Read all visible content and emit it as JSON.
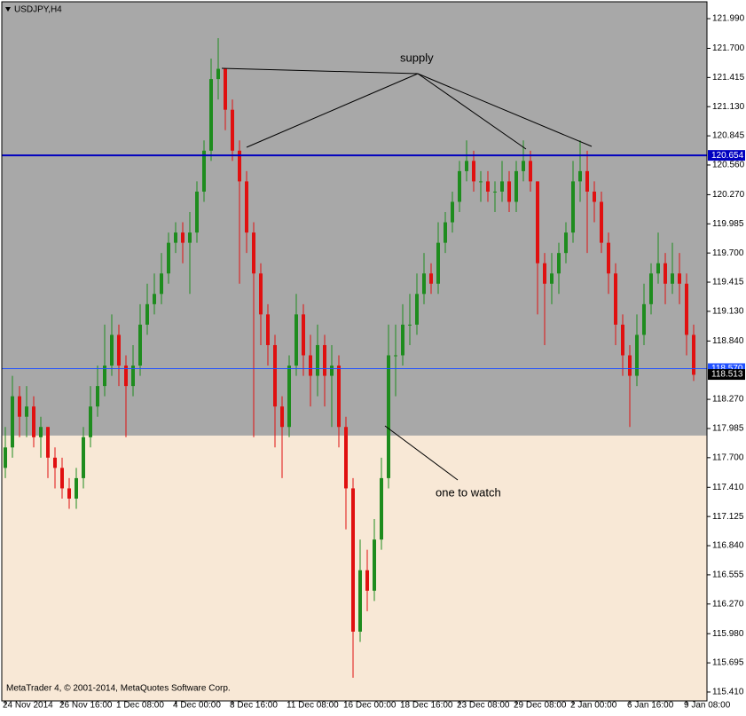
{
  "chart_data": {
    "type": "candlestick",
    "title": "USDJPY,H4",
    "footer": "MetaTrader 4, © 2001-2014, MetaQuotes Software Corp.",
    "categories": [
      "24 Nov 2014",
      null,
      null,
      null,
      null,
      null,
      null,
      null,
      "26 Nov 16:00",
      null,
      null,
      null,
      null,
      null,
      null,
      null,
      "1 Dec 08:00",
      null,
      null,
      null,
      null,
      null,
      null,
      null,
      "4 Dec 00:00",
      null,
      null,
      null,
      null,
      null,
      null,
      null,
      "8 Dec 16:00",
      null,
      null,
      null,
      null,
      null,
      null,
      null,
      "11 Dec 08:00",
      null,
      null,
      null,
      null,
      null,
      null,
      null,
      "16 Dec 00:00",
      null,
      null,
      null,
      null,
      null,
      null,
      null,
      "18 Dec 16:00",
      null,
      null,
      null,
      null,
      null,
      null,
      null,
      "23 Dec 08:00",
      null,
      null,
      null,
      null,
      null,
      null,
      null,
      "29 Dec 08:00",
      null,
      null,
      null,
      null,
      null,
      null,
      null,
      "2 Jan 00:00",
      null,
      null,
      null,
      null,
      null,
      null,
      null,
      "6 Jan 16:00",
      null,
      null,
      null,
      null,
      null,
      null,
      null,
      "9 Jan 08:00",
      null
    ],
    "open": [
      117.6,
      117.8,
      118.3,
      118.1,
      118.2,
      117.9,
      118.0,
      117.7,
      117.6,
      117.4,
      117.3,
      117.5,
      117.9,
      118.2,
      118.4,
      118.6,
      118.9,
      118.6,
      118.4,
      118.6,
      119.0,
      119.2,
      119.3,
      119.5,
      119.8,
      119.9,
      119.8,
      119.9,
      120.3,
      120.7,
      121.4,
      121.5,
      121.1,
      120.7,
      120.4,
      119.9,
      119.5,
      119.1,
      118.8,
      118.2,
      118.0,
      118.6,
      119.1,
      118.7,
      118.5,
      118.8,
      118.5,
      118.6,
      118.0,
      117.4,
      116.0,
      116.6,
      116.4,
      116.9,
      117.5,
      118.7,
      118.7,
      119.0,
      119.0,
      119.3,
      119.5,
      119.4,
      119.8,
      120.0,
      120.2,
      120.5,
      120.6,
      120.4,
      120.4,
      120.3,
      120.3,
      120.4,
      120.2,
      120.5,
      120.6,
      120.4,
      119.6,
      119.4,
      119.5,
      119.7,
      119.9,
      120.4,
      120.5,
      120.3,
      120.2,
      119.8,
      119.5,
      119.0,
      118.7,
      118.5,
      118.9,
      119.2,
      119.5,
      119.6,
      119.4,
      119.5,
      119.4,
      118.9
    ],
    "high": [
      118.0,
      118.5,
      118.4,
      118.4,
      118.3,
      118.1,
      118.0,
      117.8,
      117.7,
      117.5,
      117.6,
      118.0,
      118.4,
      118.6,
      119.0,
      119.1,
      119.0,
      118.7,
      118.8,
      119.2,
      119.4,
      119.5,
      119.7,
      119.9,
      120.0,
      120.0,
      120.1,
      120.4,
      120.8,
      121.6,
      121.8,
      121.5,
      121.2,
      120.8,
      120.5,
      120.0,
      119.6,
      119.2,
      118.9,
      118.3,
      118.7,
      119.3,
      119.2,
      118.9,
      119.0,
      118.9,
      118.8,
      118.7,
      118.1,
      117.5,
      116.9,
      116.8,
      117.1,
      117.7,
      119.0,
      119.0,
      119.2,
      119.3,
      119.5,
      119.7,
      119.6,
      120.0,
      120.1,
      120.3,
      120.6,
      120.8,
      120.7,
      120.5,
      120.5,
      120.4,
      120.6,
      120.5,
      120.6,
      120.8,
      120.7,
      120.4,
      119.7,
      119.7,
      119.8,
      120.0,
      120.6,
      120.8,
      120.7,
      120.4,
      120.3,
      119.9,
      119.6,
      119.1,
      118.8,
      119.1,
      119.4,
      119.6,
      119.9,
      119.7,
      119.8,
      119.7,
      119.5,
      119.0
    ],
    "low": [
      117.5,
      117.7,
      117.9,
      117.9,
      117.8,
      117.7,
      117.5,
      117.4,
      117.3,
      117.2,
      117.2,
      117.4,
      117.8,
      118.1,
      118.3,
      118.5,
      118.4,
      117.9,
      118.3,
      118.5,
      118.9,
      119.1,
      119.2,
      119.4,
      119.7,
      119.6,
      119.3,
      119.8,
      120.2,
      120.6,
      121.2,
      120.9,
      120.6,
      119.4,
      119.7,
      117.9,
      118.8,
      118.6,
      117.8,
      117.5,
      117.9,
      118.5,
      118.5,
      118.2,
      118.3,
      118.2,
      118.0,
      117.8,
      117.0,
      115.55,
      115.9,
      116.2,
      116.3,
      116.8,
      117.4,
      118.3,
      118.6,
      118.8,
      118.9,
      119.2,
      119.3,
      119.3,
      119.7,
      119.9,
      120.1,
      120.4,
      120.3,
      120.2,
      120.2,
      120.1,
      120.2,
      120.1,
      120.1,
      120.4,
      120.3,
      119.1,
      118.8,
      119.2,
      119.3,
      119.6,
      119.8,
      120.2,
      119.7,
      120.0,
      119.7,
      119.3,
      118.8,
      118.5,
      118.0,
      118.4,
      118.8,
      119.1,
      119.4,
      119.2,
      119.3,
      119.2,
      118.7,
      118.45
    ],
    "close": [
      117.8,
      118.3,
      118.1,
      118.2,
      117.9,
      118.0,
      117.7,
      117.6,
      117.4,
      117.3,
      117.5,
      117.9,
      118.2,
      118.4,
      118.6,
      118.9,
      118.6,
      118.4,
      118.6,
      119.0,
      119.2,
      119.3,
      119.5,
      119.8,
      119.9,
      119.8,
      119.9,
      120.3,
      120.7,
      121.4,
      121.5,
      121.1,
      120.7,
      120.4,
      119.9,
      119.5,
      119.1,
      118.8,
      118.2,
      118.0,
      118.6,
      119.1,
      118.7,
      118.5,
      118.8,
      118.5,
      118.6,
      118.0,
      117.4,
      116.0,
      116.6,
      116.4,
      116.9,
      117.5,
      118.7,
      118.7,
      119.0,
      119.0,
      119.3,
      119.5,
      119.4,
      119.8,
      120.0,
      120.2,
      120.5,
      120.6,
      120.4,
      120.4,
      120.3,
      120.3,
      120.4,
      120.2,
      120.5,
      120.6,
      120.4,
      119.6,
      119.4,
      119.5,
      119.7,
      119.9,
      120.4,
      120.5,
      120.3,
      120.2,
      119.8,
      119.5,
      119.0,
      118.7,
      118.5,
      118.9,
      119.2,
      119.5,
      119.6,
      119.4,
      119.5,
      119.4,
      118.9,
      118.51
    ],
    "up_color": "#1e8c1e",
    "down_color": "#e01010",
    "ylim": [
      115.323,
      122.155
    ],
    "yticks": [
      {
        "value": 121.99,
        "label": "121.990"
      },
      {
        "value": 121.7,
        "label": "121.700"
      },
      {
        "value": 121.415,
        "label": "121.415"
      },
      {
        "value": 121.13,
        "label": "121.130"
      },
      {
        "value": 120.845,
        "label": "120.845"
      },
      {
        "value": 120.56,
        "label": "120.560"
      },
      {
        "value": 120.27,
        "label": "120.270"
      },
      {
        "value": 119.985,
        "label": "119.985"
      },
      {
        "value": 119.7,
        "label": "119.700"
      },
      {
        "value": 119.415,
        "label": "119.415"
      },
      {
        "value": 119.13,
        "label": "119.130"
      },
      {
        "value": 118.84,
        "label": "118.840"
      },
      {
        "value": 118.27,
        "label": "118.270"
      },
      {
        "value": 117.985,
        "label": "117.985"
      },
      {
        "value": 117.7,
        "label": "117.700"
      },
      {
        "value": 117.41,
        "label": "117.410"
      },
      {
        "value": 117.125,
        "label": "117.125"
      },
      {
        "value": 116.84,
        "label": "116.840"
      },
      {
        "value": 116.555,
        "label": "116.555"
      },
      {
        "value": 116.27,
        "label": "116.270"
      },
      {
        "value": 115.98,
        "label": "115.980"
      },
      {
        "value": 115.695,
        "label": "115.695"
      },
      {
        "value": 115.41,
        "label": "115.410"
      }
    ],
    "supply_zone_bottom": 117.916,
    "levels": [
      {
        "value": 118.57,
        "label": "118.570",
        "color": "#2050ff",
        "width": 1
      },
      {
        "value": 120.654,
        "label": "120.654",
        "color": "#0000c0",
        "width": 2
      }
    ],
    "bid": {
      "value": 118.513,
      "label": "118.513"
    },
    "annotations": [
      "supply",
      "one to watch"
    ]
  }
}
